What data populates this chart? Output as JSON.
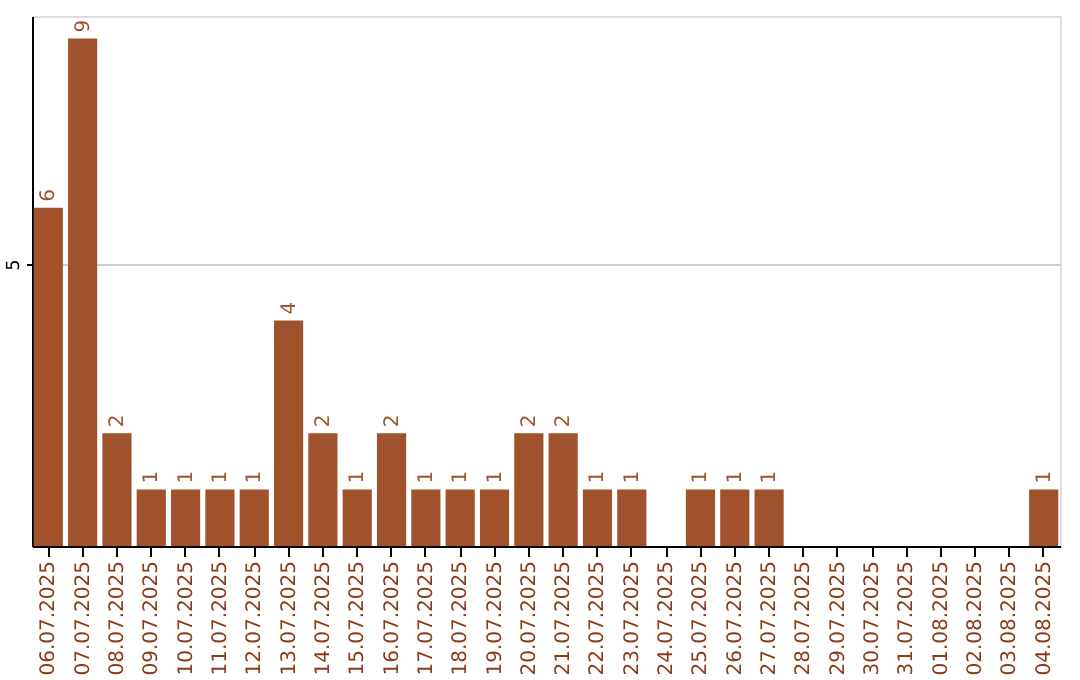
{
  "chart_data": {
    "type": "bar",
    "categories": [
      "06.07.2025",
      "07.07.2025",
      "08.07.2025",
      "09.07.2025",
      "10.07.2025",
      "11.07.2025",
      "12.07.2025",
      "13.07.2025",
      "14.07.2025",
      "15.07.2025",
      "16.07.2025",
      "17.07.2025",
      "18.07.2025",
      "19.07.2025",
      "20.07.2025",
      "21.07.2025",
      "22.07.2025",
      "23.07.2025",
      "24.07.2025",
      "25.07.2025",
      "26.07.2025",
      "27.07.2025",
      "28.07.2025",
      "29.07.2025",
      "30.07.2025",
      "31.07.2025",
      "01.08.2025",
      "02.08.2025",
      "03.08.2025",
      "04.08.2025"
    ],
    "values": [
      6,
      9,
      2,
      1,
      1,
      1,
      1,
      4,
      2,
      1,
      2,
      1,
      1,
      1,
      2,
      2,
      1,
      1,
      null,
      1,
      1,
      1,
      null,
      null,
      null,
      null,
      null,
      null,
      null,
      1
    ],
    "color": "#a0522d",
    "ylim": [
      0,
      9.4
    ],
    "yticks": [
      5
    ],
    "grid": "y",
    "data_labels": true
  }
}
